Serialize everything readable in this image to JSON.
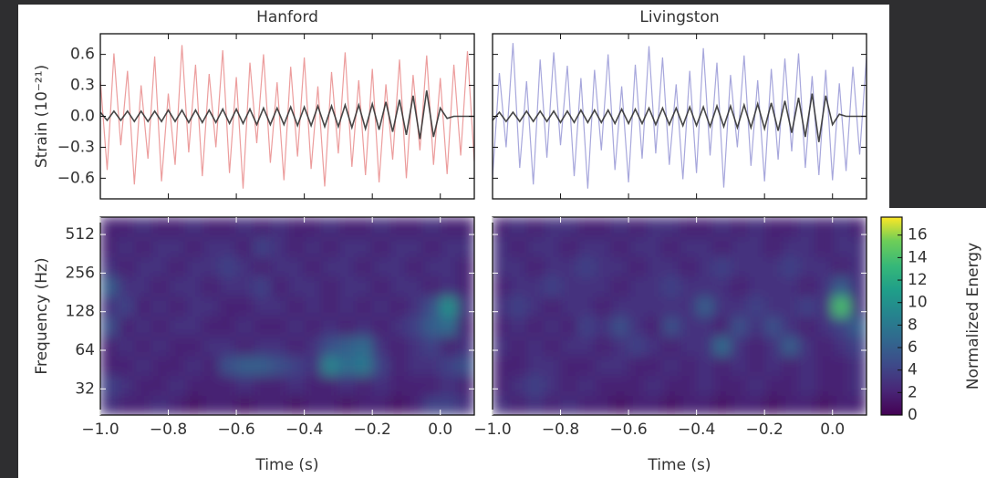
{
  "chart_data": [
    {
      "type": "line",
      "title": "Hanford",
      "ylabel": "Strain (10⁻²¹)",
      "x": [
        -1,
        -0.98,
        -0.96,
        -0.94,
        -0.92,
        -0.9,
        -0.88,
        -0.86,
        -0.84,
        -0.82,
        -0.8,
        -0.78,
        -0.76,
        -0.74,
        -0.72,
        -0.7,
        -0.68,
        -0.66,
        -0.64,
        -0.62,
        -0.6,
        -0.58,
        -0.56,
        -0.54,
        -0.52,
        -0.5,
        -0.48,
        -0.46,
        -0.44,
        -0.42,
        -0.4,
        -0.38,
        -0.36,
        -0.34,
        -0.32,
        -0.3,
        -0.28,
        -0.26,
        -0.24,
        -0.22,
        -0.2,
        -0.18,
        -0.16,
        -0.14,
        -0.12,
        -0.1,
        -0.08,
        -0.06,
        -0.04,
        -0.02,
        0,
        0.02,
        0.04,
        0.06,
        0.08,
        0.1
      ],
      "series": [
        {
          "color": "#e67c7c",
          "values": [
            0.35,
            -0.52,
            0.61,
            -0.28,
            0.44,
            -0.66,
            0.3,
            -0.41,
            0.58,
            -0.63,
            0.22,
            -0.47,
            0.69,
            -0.35,
            0.5,
            -0.58,
            0.41,
            -0.3,
            0.64,
            -0.55,
            0.38,
            -0.7,
            0.52,
            -0.26,
            0.6,
            -0.45,
            0.33,
            -0.62,
            0.48,
            -0.39,
            0.57,
            -0.51,
            0.29,
            -0.68,
            0.43,
            -0.36,
            0.62,
            -0.49,
            0.35,
            -0.57,
            0.46,
            -0.64,
            0.31,
            -0.42,
            0.55,
            -0.6,
            0.4,
            -0.33,
            0.59,
            -0.47,
            0.37,
            -0.56,
            0.5,
            -0.38,
            0.63,
            -0.44
          ]
        },
        {
          "color": "#333333",
          "values": [
            0.04,
            -0.04,
            0.05,
            -0.04,
            0.05,
            -0.05,
            0.05,
            -0.05,
            0.05,
            -0.05,
            0.06,
            -0.05,
            0.06,
            -0.06,
            0.06,
            -0.06,
            0.06,
            -0.06,
            0.07,
            -0.07,
            0.07,
            -0.07,
            0.07,
            -0.08,
            0.08,
            -0.08,
            0.08,
            -0.08,
            0.09,
            -0.09,
            0.09,
            -0.09,
            0.1,
            -0.1,
            0.1,
            -0.1,
            0.11,
            -0.11,
            0.11,
            -0.12,
            0.12,
            -0.13,
            0.14,
            -0.15,
            0.16,
            -0.18,
            0.2,
            -0.22,
            0.25,
            -0.2,
            0.08,
            -0.02,
            0,
            0,
            0,
            0
          ]
        }
      ],
      "xlim": [
        -1,
        0.1
      ],
      "xticks": [
        -1,
        -0.8,
        -0.6,
        -0.4,
        -0.2,
        0
      ],
      "ylim": [
        -0.8,
        0.8
      ],
      "yticks": [
        0.6,
        0.3,
        {
          "value": 0,
          "label": "0.0"
        },
        {
          "value": -0.3,
          "label": "−0.3"
        },
        {
          "value": -0.6,
          "label": "−0.6"
        }
      ]
    },
    {
      "type": "line",
      "title": "Livingston",
      "x": [
        -1,
        -0.98,
        -0.96,
        -0.94,
        -0.92,
        -0.9,
        -0.88,
        -0.86,
        -0.84,
        -0.82,
        -0.8,
        -0.78,
        -0.76,
        -0.74,
        -0.72,
        -0.7,
        -0.68,
        -0.66,
        -0.64,
        -0.62,
        -0.6,
        -0.58,
        -0.56,
        -0.54,
        -0.52,
        -0.5,
        -0.48,
        -0.46,
        -0.44,
        -0.42,
        -0.4,
        -0.38,
        -0.36,
        -0.34,
        -0.32,
        -0.3,
        -0.28,
        -0.26,
        -0.24,
        -0.22,
        -0.2,
        -0.18,
        -0.16,
        -0.14,
        -0.12,
        -0.1,
        -0.08,
        -0.06,
        -0.04,
        -0.02,
        0,
        0.02,
        0.04,
        0.06,
        0.08,
        0.1
      ],
      "series": [
        {
          "color": "#8a8ad0",
          "values": [
            -0.6,
            0.42,
            -0.3,
            0.71,
            -0.5,
            0.34,
            -0.66,
            0.55,
            -0.4,
            0.62,
            -0.28,
            0.49,
            -0.58,
            0.37,
            -0.7,
            0.45,
            -0.33,
            0.6,
            -0.52,
            0.29,
            -0.64,
            0.5,
            -0.41,
            0.68,
            -0.36,
            0.57,
            -0.47,
            0.31,
            -0.61,
            0.44,
            -0.55,
            0.66,
            -0.38,
            0.52,
            -0.69,
            0.4,
            -0.3,
            0.59,
            -0.48,
            0.35,
            -0.63,
            0.46,
            -0.42,
            0.56,
            -0.34,
            0.61,
            -0.5,
            0.39,
            -0.57,
            0.45,
            -0.62,
            0.32,
            -0.53,
            0.48,
            -0.37,
            0.58
          ]
        },
        {
          "color": "#333333",
          "values": [
            -0.04,
            0.04,
            -0.05,
            0.04,
            -0.05,
            0.05,
            -0.05,
            0.05,
            -0.05,
            0.05,
            -0.06,
            0.05,
            -0.06,
            0.06,
            -0.06,
            0.06,
            -0.06,
            0.06,
            -0.07,
            0.07,
            -0.07,
            0.07,
            -0.07,
            0.08,
            -0.08,
            0.08,
            -0.08,
            0.08,
            -0.09,
            0.09,
            -0.09,
            0.09,
            -0.1,
            0.1,
            -0.1,
            0.1,
            -0.11,
            0.11,
            -0.11,
            0.12,
            -0.12,
            0.13,
            -0.14,
            0.15,
            -0.16,
            0.18,
            -0.2,
            0.22,
            -0.25,
            0.2,
            -0.08,
            0.02,
            0,
            0,
            0,
            0
          ]
        }
      ],
      "xlim": [
        -1,
        0.1
      ],
      "xticks": [
        -1,
        -0.8,
        -0.6,
        -0.4,
        -0.2,
        0
      ],
      "ylim": [
        -0.8,
        0.8
      ],
      "yticks": [
        0.6,
        0.3,
        {
          "value": 0,
          "label": "0.0"
        },
        {
          "value": -0.3,
          "label": "−0.3"
        },
        {
          "value": -0.6,
          "label": "−0.6"
        }
      ]
    },
    {
      "type": "heatmap",
      "ylabel": "Frequency (Hz)",
      "xlabel": "Time (s)",
      "colormap": "viridis",
      "log_y": true,
      "x": [
        -0.975,
        -0.925,
        -0.875,
        -0.825,
        -0.775,
        -0.725,
        -0.675,
        -0.625,
        -0.575,
        -0.525,
        -0.475,
        -0.425,
        -0.375,
        -0.325,
        -0.275,
        -0.225,
        -0.175,
        -0.125,
        -0.075,
        -0.025,
        0.025,
        0.075
      ],
      "y": [
        24,
        34,
        49,
        69,
        99,
        141,
        202,
        288,
        411,
        586
      ],
      "z": [
        [
          3,
          2,
          2,
          3,
          2,
          1,
          2,
          2,
          1,
          2,
          2,
          1,
          2,
          2,
          1,
          2,
          2,
          1,
          2,
          4,
          4,
          3
        ],
        [
          4,
          3,
          2,
          2,
          3,
          2,
          2,
          2,
          3,
          2,
          2,
          3,
          2,
          2,
          3,
          2,
          3,
          2,
          2,
          2,
          3,
          2
        ],
        [
          2,
          2,
          3,
          2,
          2,
          3,
          2,
          5,
          6,
          6,
          5,
          4,
          3,
          9,
          7,
          8,
          4,
          2,
          3,
          3,
          4,
          5
        ],
        [
          2,
          3,
          2,
          3,
          2,
          2,
          3,
          3,
          2,
          3,
          3,
          2,
          3,
          5,
          6,
          7,
          3,
          2,
          3,
          4,
          2,
          3
        ],
        [
          5,
          2,
          3,
          2,
          3,
          3,
          2,
          2,
          3,
          2,
          2,
          3,
          2,
          3,
          2,
          3,
          2,
          3,
          4,
          6,
          7,
          2
        ],
        [
          3,
          4,
          2,
          3,
          2,
          3,
          3,
          2,
          2,
          3,
          3,
          2,
          3,
          2,
          3,
          2,
          3,
          2,
          3,
          5,
          10,
          3
        ],
        [
          6,
          3,
          3,
          2,
          3,
          3,
          2,
          3,
          3,
          4,
          2,
          3,
          3,
          2,
          3,
          3,
          2,
          3,
          3,
          2,
          3,
          2
        ],
        [
          3,
          2,
          3,
          3,
          2,
          3,
          3,
          4,
          3,
          2,
          3,
          3,
          2,
          3,
          3,
          2,
          3,
          3,
          2,
          3,
          3,
          2
        ],
        [
          2,
          3,
          2,
          3,
          3,
          2,
          3,
          3,
          2,
          4,
          3,
          2,
          3,
          2,
          3,
          3,
          2,
          3,
          3,
          2,
          3,
          3
        ],
        [
          2,
          2,
          3,
          2,
          2,
          3,
          2,
          2,
          3,
          2,
          3,
          2,
          2,
          3,
          2,
          2,
          3,
          2,
          2,
          3,
          2,
          2
        ]
      ],
      "xlim": [
        -1,
        0.1
      ],
      "xticks": [
        {
          "value": -1,
          "label": "−1.0"
        },
        {
          "value": -0.8,
          "label": "−0.8"
        },
        {
          "value": -0.6,
          "label": "−0.6"
        },
        {
          "value": -0.4,
          "label": "−0.4"
        },
        {
          "value": -0.2,
          "label": "−0.2"
        },
        {
          "value": 0,
          "label": "0.0"
        }
      ],
      "ylim": [
        20,
        700
      ],
      "yticks": [
        32,
        64,
        128,
        256,
        512
      ]
    },
    {
      "type": "heatmap",
      "xlabel": "Time (s)",
      "colormap": "viridis",
      "log_y": true,
      "x": [
        -0.975,
        -0.925,
        -0.875,
        -0.825,
        -0.775,
        -0.725,
        -0.675,
        -0.625,
        -0.575,
        -0.525,
        -0.475,
        -0.425,
        -0.375,
        -0.325,
        -0.275,
        -0.225,
        -0.175,
        -0.125,
        -0.075,
        -0.025,
        0.025,
        0.075
      ],
      "y": [
        24,
        34,
        49,
        69,
        99,
        141,
        202,
        288,
        411,
        586
      ],
      "z": [
        [
          3,
          2,
          3,
          2,
          3,
          2,
          2,
          1,
          2,
          2,
          1,
          2,
          2,
          1,
          2,
          2,
          1,
          2,
          2,
          1,
          2,
          2
        ],
        [
          2,
          3,
          4,
          3,
          2,
          3,
          2,
          2,
          2,
          3,
          2,
          2,
          3,
          2,
          2,
          3,
          2,
          2,
          3,
          2,
          2,
          3
        ],
        [
          2,
          2,
          3,
          3,
          2,
          2,
          3,
          3,
          2,
          2,
          3,
          2,
          3,
          2,
          3,
          2,
          3,
          2,
          3,
          2,
          2,
          3
        ],
        [
          3,
          2,
          3,
          2,
          3,
          3,
          2,
          3,
          4,
          3,
          2,
          3,
          3,
          7,
          3,
          2,
          3,
          6,
          3,
          2,
          3,
          4
        ],
        [
          2,
          3,
          2,
          3,
          2,
          4,
          3,
          5,
          3,
          2,
          5,
          3,
          3,
          2,
          5,
          3,
          5,
          3,
          2,
          3,
          4,
          6
        ],
        [
          3,
          4,
          3,
          2,
          3,
          3,
          2,
          3,
          3,
          3,
          3,
          3,
          6,
          3,
          3,
          4,
          3,
          3,
          4,
          3,
          14,
          3
        ],
        [
          2,
          3,
          3,
          4,
          3,
          3,
          3,
          2,
          3,
          3,
          4,
          3,
          3,
          3,
          2,
          3,
          3,
          3,
          2,
          3,
          6,
          3
        ],
        [
          3,
          3,
          2,
          3,
          3,
          4,
          3,
          3,
          2,
          3,
          3,
          2,
          3,
          4,
          3,
          3,
          3,
          4,
          3,
          3,
          2,
          3
        ],
        [
          3,
          2,
          3,
          3,
          2,
          3,
          3,
          2,
          3,
          3,
          2,
          3,
          3,
          2,
          3,
          3,
          2,
          3,
          3,
          2,
          3,
          3
        ],
        [
          2,
          3,
          2,
          3,
          3,
          2,
          2,
          3,
          2,
          3,
          3,
          2,
          2,
          3,
          2,
          3,
          2,
          2,
          3,
          2,
          3,
          2
        ]
      ],
      "xlim": [
        -1,
        0.1
      ],
      "xticks": [
        {
          "value": -1,
          "label": "−1.0"
        },
        {
          "value": -0.8,
          "label": "−0.8"
        },
        {
          "value": -0.6,
          "label": "−0.6"
        },
        {
          "value": -0.4,
          "label": "−0.4"
        },
        {
          "value": -0.2,
          "label": "−0.2"
        },
        {
          "value": 0,
          "label": "0.0"
        }
      ],
      "ylim": [
        20,
        700
      ],
      "yticks": [
        32,
        64,
        128,
        256,
        512
      ],
      "colorbar": {
        "label": "Normalized Energy",
        "zlim": [
          0,
          17.6
        ],
        "zticks": [
          0,
          2,
          4,
          6,
          8,
          10,
          12,
          14,
          16
        ]
      }
    }
  ]
}
